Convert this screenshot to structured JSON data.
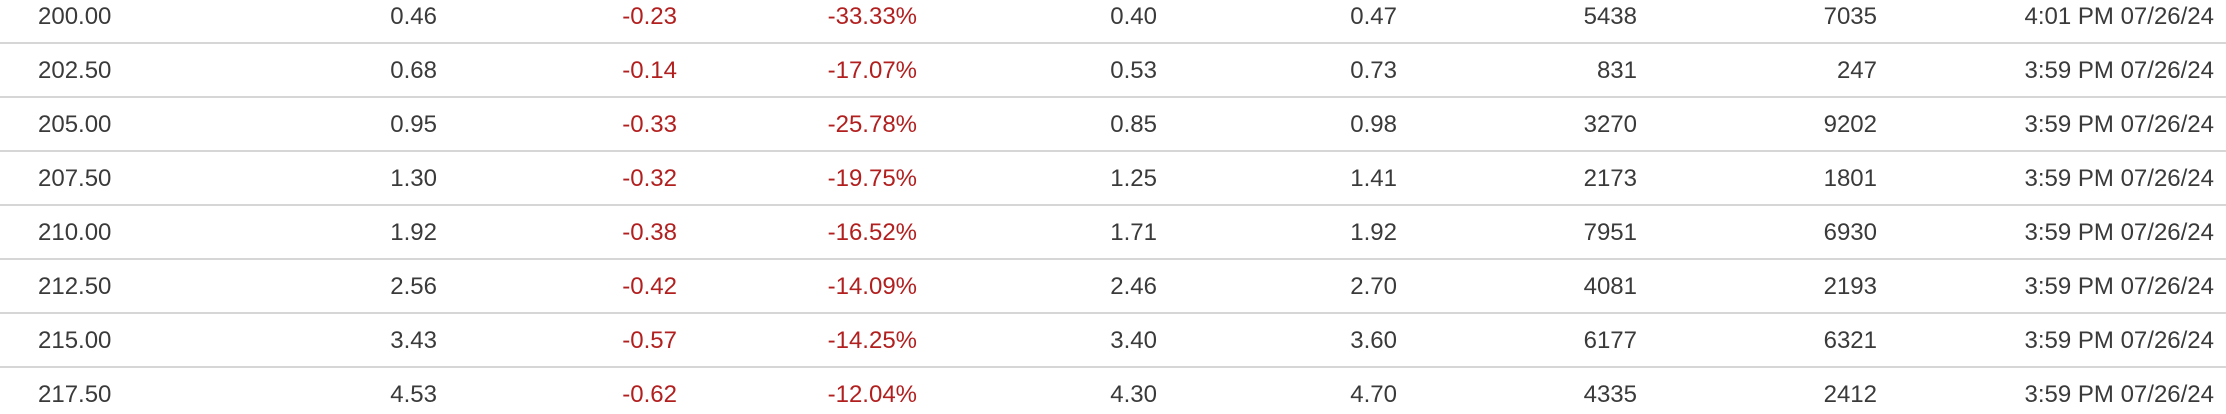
{
  "table": {
    "rows": [
      {
        "strike": "200.00",
        "last": "0.46",
        "change": "-0.23",
        "pct_change": "-33.33%",
        "bid": "0.40",
        "ask": "0.47",
        "volume": "5438",
        "open_interest": "7035",
        "last_trade": "4:01 PM 07/26/24"
      },
      {
        "strike": "202.50",
        "last": "0.68",
        "change": "-0.14",
        "pct_change": "-17.07%",
        "bid": "0.53",
        "ask": "0.73",
        "volume": "831",
        "open_interest": "247",
        "last_trade": "3:59 PM 07/26/24"
      },
      {
        "strike": "205.00",
        "last": "0.95",
        "change": "-0.33",
        "pct_change": "-25.78%",
        "bid": "0.85",
        "ask": "0.98",
        "volume": "3270",
        "open_interest": "9202",
        "last_trade": "3:59 PM 07/26/24"
      },
      {
        "strike": "207.50",
        "last": "1.30",
        "change": "-0.32",
        "pct_change": "-19.75%",
        "bid": "1.25",
        "ask": "1.41",
        "volume": "2173",
        "open_interest": "1801",
        "last_trade": "3:59 PM 07/26/24"
      },
      {
        "strike": "210.00",
        "last": "1.92",
        "change": "-0.38",
        "pct_change": "-16.52%",
        "bid": "1.71",
        "ask": "1.92",
        "volume": "7951",
        "open_interest": "6930",
        "last_trade": "3:59 PM 07/26/24"
      },
      {
        "strike": "212.50",
        "last": "2.56",
        "change": "-0.42",
        "pct_change": "-14.09%",
        "bid": "2.46",
        "ask": "2.70",
        "volume": "4081",
        "open_interest": "2193",
        "last_trade": "3:59 PM 07/26/24"
      },
      {
        "strike": "215.00",
        "last": "3.43",
        "change": "-0.57",
        "pct_change": "-14.25%",
        "bid": "3.40",
        "ask": "3.60",
        "volume": "6177",
        "open_interest": "6321",
        "last_trade": "3:59 PM 07/26/24"
      },
      {
        "strike": "217.50",
        "last": "4.53",
        "change": "-0.62",
        "pct_change": "-12.04%",
        "bid": "4.30",
        "ask": "4.70",
        "volume": "4335",
        "open_interest": "2412",
        "last_trade": "3:59 PM 07/26/24"
      }
    ]
  },
  "colors": {
    "negative": "#b21f1f",
    "text": "#3a3a3a",
    "divider": "#d6d6d6"
  }
}
